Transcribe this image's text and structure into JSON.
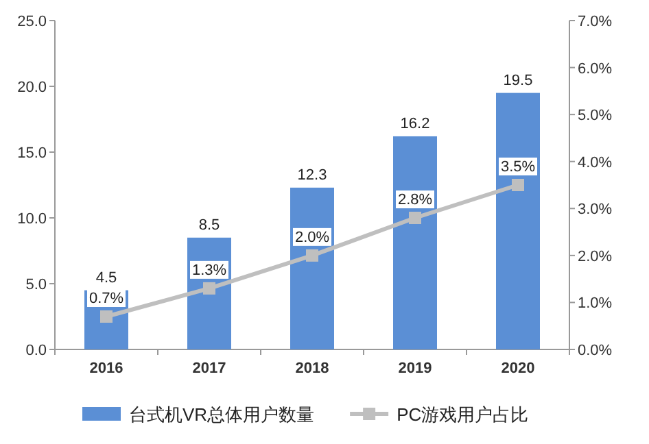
{
  "chart_data": {
    "type": "bar",
    "categories": [
      "2016",
      "2017",
      "2018",
      "2019",
      "2020"
    ],
    "series": [
      {
        "name": "台式机VR总体用户数量",
        "color": "#5b8fd5",
        "values": [
          4.5,
          8.5,
          12.3,
          16.2,
          19.5
        ],
        "value_labels": [
          "4.5",
          "8.5",
          "12.3",
          "16.2",
          "19.5"
        ]
      },
      {
        "name": "PC游戏用户占比",
        "type": "line",
        "axis": "y2",
        "color": "#bfbfbf",
        "marker": "square",
        "line_style": "solid",
        "values": [
          0.7,
          1.3,
          2.0,
          2.8,
          3.5
        ],
        "value_labels": [
          "0.7%",
          "1.3%",
          "2.0%",
          "2.8%",
          "3.5%"
        ]
      }
    ],
    "ylim": [
      0,
      25
    ],
    "yticks": [
      {
        "value": 0,
        "label": "0.0"
      },
      {
        "value": 5,
        "label": "5.0"
      },
      {
        "value": 10,
        "label": "10.0"
      },
      {
        "value": 15,
        "label": "15.0"
      },
      {
        "value": 20,
        "label": "20.0"
      },
      {
        "value": 25,
        "label": "25.0"
      }
    ],
    "y2lim": [
      0,
      7
    ],
    "y2ticks": [
      {
        "value": 0,
        "label": "0.0%"
      },
      {
        "value": 1,
        "label": "1.0%"
      },
      {
        "value": 2,
        "label": "2.0%"
      },
      {
        "value": 3,
        "label": "3.0%"
      },
      {
        "value": 4,
        "label": "4.0%"
      },
      {
        "value": 5,
        "label": "5.0%"
      },
      {
        "value": 6,
        "label": "6.0%"
      },
      {
        "value": 7,
        "label": "7.0%"
      }
    ],
    "grid": false,
    "legend": "bottom"
  }
}
